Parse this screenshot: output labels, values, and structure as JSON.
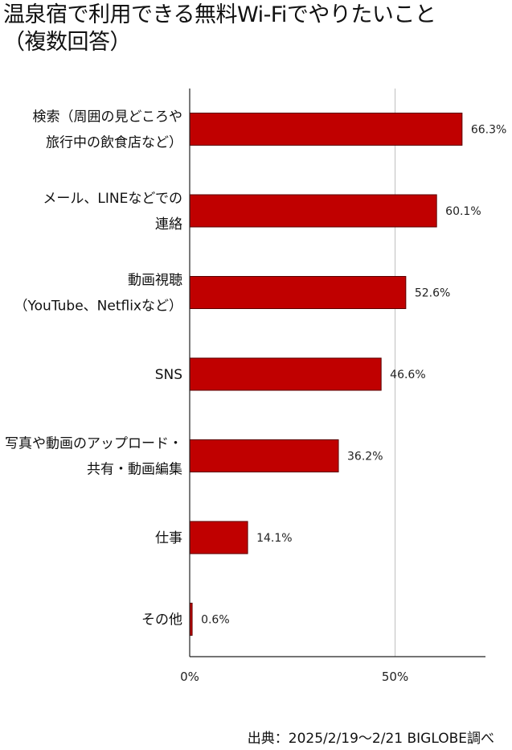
{
  "title_lines": [
    "温泉宿で利用できる無料Wi-Fiでやりたいこと",
    "（複数回答）"
  ],
  "source": "出典：2025/2/19～2/21 BIGLOBE調べ",
  "colors": {
    "bar": "#C00000",
    "bar_border": "#5a0000",
    "grid": "#bfbfbf",
    "axis": "#222222"
  },
  "chart_data": {
    "type": "bar",
    "orientation": "horizontal",
    "categories": [
      [
        "検索（周囲の見どころや",
        "旅行中の飲食店など）"
      ],
      [
        "メール、LINEなどでの",
        "連絡"
      ],
      [
        "動画視聴",
        "（YouTube、Netflixなど）"
      ],
      [
        "SNS"
      ],
      [
        "写真や動画のアップロード・",
        "共有・動画編集"
      ],
      [
        "仕事"
      ],
      [
        "その他"
      ]
    ],
    "values": [
      66.3,
      60.1,
      52.6,
      46.6,
      36.2,
      14.1,
      0.6
    ],
    "value_labels": [
      "66.3%",
      "60.1%",
      "52.6%",
      "46.6%",
      "36.2%",
      "14.1%",
      "0.6%"
    ],
    "xlim": [
      0,
      72
    ],
    "xticks": [
      0,
      50
    ],
    "xtick_labels": [
      "0%",
      "50%"
    ],
    "grid": true
  }
}
